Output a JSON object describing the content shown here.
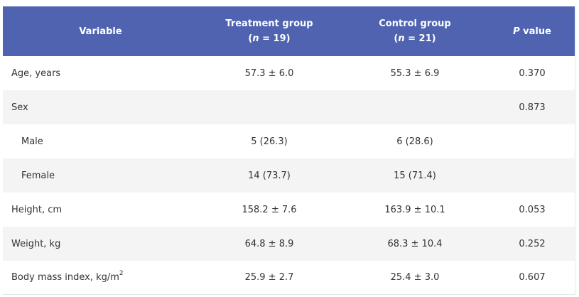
{
  "table": {
    "headers": {
      "variable": "Variable",
      "treatment_title": "Treatment group",
      "treatment_n_var": "n",
      "treatment_n_rest": " = 19)",
      "control_title": "Control group",
      "control_n_var": "n",
      "control_n_rest": " = 21)",
      "p_italic": "P",
      "p_rest": " value",
      "open_paren": "("
    },
    "rows": [
      {
        "variable": "Age, years",
        "treatment": "57.3 ± 6.0",
        "control": "55.3 ± 6.9",
        "p": "0.370"
      },
      {
        "variable": "Sex",
        "treatment": "",
        "control": "",
        "p": "0.873"
      },
      {
        "variable": "Male",
        "treatment": "5 (26.3)",
        "control": "6 (28.6)",
        "p": ""
      },
      {
        "variable": "Female",
        "treatment": "14 (73.7)",
        "control": "15 (71.4)",
        "p": ""
      },
      {
        "variable": "Height, cm",
        "treatment": "158.2 ± 7.6",
        "control": "163.9 ± 10.1",
        "p": "0.053"
      },
      {
        "variable": "Weight, kg",
        "treatment": "64.8 ± 8.9",
        "control": "68.3 ± 10.4",
        "p": "0.252"
      },
      {
        "variable": "Body mass index, kg/m",
        "variable_sup": "2",
        "treatment": "25.9 ± 2.7",
        "control": "25.4 ± 3.0",
        "p": "0.607"
      }
    ]
  }
}
